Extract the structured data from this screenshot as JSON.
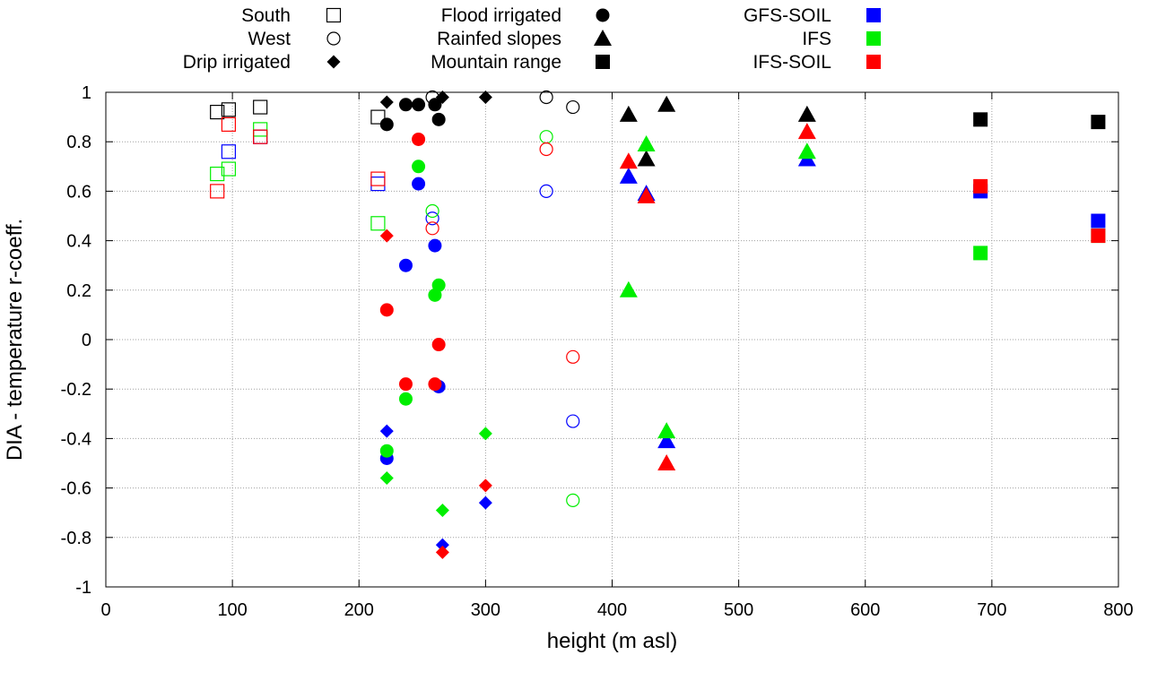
{
  "chart_data": {
    "type": "scatter",
    "title": "",
    "xlabel": "height (m asl)",
    "ylabel": "DIA - temperature r-coeff.",
    "xlim": [
      0,
      800
    ],
    "ylim": [
      -1,
      1
    ],
    "grid": true,
    "x_ticks": [
      "0",
      "100",
      "200",
      "300",
      "400",
      "500",
      "600",
      "700",
      "800"
    ],
    "y_ticks": [
      "1",
      "0.8",
      "0.6",
      "0.4",
      "0.2",
      "0",
      "-0.2",
      "-0.4",
      "-0.6",
      "-0.8",
      "-1"
    ],
    "legend_placement": "top, above plot",
    "legend": {
      "regions": [
        {
          "label": "South",
          "marker": "square-open"
        },
        {
          "label": "West",
          "marker": "circle-open"
        },
        {
          "label": "Drip irrigated",
          "marker": "diamond-filled"
        },
        {
          "label": "Flood irrigated",
          "marker": "circle-filled"
        },
        {
          "label": "Rainfed slopes",
          "marker": "triangle-filled"
        },
        {
          "label": "Mountain range",
          "marker": "square-filled"
        }
      ],
      "models": [
        {
          "label": "GFS-SOIL",
          "color": "#0000ff"
        },
        {
          "label": "IFS",
          "color": "#00ee00"
        },
        {
          "label": "IFS-SOIL",
          "color": "#ff0000"
        }
      ]
    },
    "model_colors": {
      "obs": "#000000",
      "gfs": "#0000ff",
      "ifs": "#00ee00",
      "ifssoil": "#ff0000"
    },
    "series": [
      {
        "marker": "square",
        "filled": false,
        "model": "obs",
        "points": [
          [
            88,
            0.92
          ],
          [
            97,
            0.93
          ],
          [
            122,
            0.94
          ],
          [
            215,
            0.9
          ]
        ]
      },
      {
        "marker": "square",
        "filled": false,
        "model": "gfs",
        "points": [
          [
            97,
            0.76
          ],
          [
            122,
            0.82
          ],
          [
            215,
            0.63
          ]
        ]
      },
      {
        "marker": "square",
        "filled": false,
        "model": "ifs",
        "points": [
          [
            88,
            0.67
          ],
          [
            97,
            0.69
          ],
          [
            122,
            0.85
          ],
          [
            215,
            0.47
          ]
        ]
      },
      {
        "marker": "square",
        "filled": false,
        "model": "ifssoil",
        "points": [
          [
            88,
            0.6
          ],
          [
            97,
            0.87
          ],
          [
            122,
            0.82
          ],
          [
            215,
            0.65
          ]
        ]
      },
      {
        "marker": "circle",
        "filled": false,
        "model": "obs",
        "points": [
          [
            258,
            0.98
          ],
          [
            348,
            0.98
          ],
          [
            369,
            0.94
          ]
        ]
      },
      {
        "marker": "circle",
        "filled": false,
        "model": "gfs",
        "points": [
          [
            258,
            0.49
          ],
          [
            348,
            0.6
          ],
          [
            369,
            -0.33
          ]
        ]
      },
      {
        "marker": "circle",
        "filled": false,
        "model": "ifs",
        "points": [
          [
            258,
            0.52
          ],
          [
            348,
            0.82
          ],
          [
            369,
            -0.65
          ]
        ]
      },
      {
        "marker": "circle",
        "filled": false,
        "model": "ifssoil",
        "points": [
          [
            258,
            0.45
          ],
          [
            348,
            0.77
          ],
          [
            369,
            -0.07
          ]
        ]
      },
      {
        "marker": "diamond",
        "filled": true,
        "model": "obs",
        "points": [
          [
            222,
            0.96
          ],
          [
            266,
            0.98
          ],
          [
            300,
            0.98
          ]
        ]
      },
      {
        "marker": "diamond",
        "filled": true,
        "model": "gfs",
        "points": [
          [
            222,
            -0.37
          ],
          [
            266,
            -0.83
          ],
          [
            300,
            -0.66
          ]
        ]
      },
      {
        "marker": "diamond",
        "filled": true,
        "model": "ifs",
        "points": [
          [
            222,
            -0.56
          ],
          [
            266,
            -0.69
          ],
          [
            300,
            -0.38
          ]
        ]
      },
      {
        "marker": "diamond",
        "filled": true,
        "model": "ifssoil",
        "points": [
          [
            222,
            0.42
          ],
          [
            266,
            -0.86
          ],
          [
            300,
            -0.59
          ]
        ]
      },
      {
        "marker": "circle",
        "filled": true,
        "model": "obs",
        "points": [
          [
            222,
            0.87
          ],
          [
            237,
            0.95
          ],
          [
            247,
            0.95
          ],
          [
            260,
            0.95
          ],
          [
            263,
            0.89
          ]
        ]
      },
      {
        "marker": "circle",
        "filled": true,
        "model": "gfs",
        "points": [
          [
            222,
            -0.48
          ],
          [
            237,
            0.3
          ],
          [
            247,
            0.63
          ],
          [
            260,
            0.38
          ],
          [
            263,
            -0.19
          ]
        ]
      },
      {
        "marker": "circle",
        "filled": true,
        "model": "ifs",
        "points": [
          [
            222,
            -0.45
          ],
          [
            237,
            -0.24
          ],
          [
            247,
            0.7
          ],
          [
            260,
            0.18
          ],
          [
            263,
            0.22
          ]
        ]
      },
      {
        "marker": "circle",
        "filled": true,
        "model": "ifssoil",
        "points": [
          [
            222,
            0.12
          ],
          [
            237,
            -0.18
          ],
          [
            247,
            0.81
          ],
          [
            260,
            -0.18
          ],
          [
            263,
            -0.02
          ]
        ]
      },
      {
        "marker": "triangle",
        "filled": true,
        "model": "obs",
        "points": [
          [
            413,
            0.91
          ],
          [
            427,
            0.73
          ],
          [
            443,
            0.95
          ],
          [
            554,
            0.91
          ]
        ]
      },
      {
        "marker": "triangle",
        "filled": true,
        "model": "gfs",
        "points": [
          [
            413,
            0.66
          ],
          [
            427,
            0.59
          ],
          [
            443,
            -0.41
          ],
          [
            554,
            0.73
          ]
        ]
      },
      {
        "marker": "triangle",
        "filled": true,
        "model": "ifs",
        "points": [
          [
            413,
            0.2
          ],
          [
            427,
            0.79
          ],
          [
            443,
            -0.37
          ],
          [
            554,
            0.76
          ]
        ]
      },
      {
        "marker": "triangle",
        "filled": true,
        "model": "ifssoil",
        "points": [
          [
            413,
            0.72
          ],
          [
            427,
            0.58
          ],
          [
            443,
            -0.5
          ],
          [
            554,
            0.84
          ]
        ]
      },
      {
        "marker": "square",
        "filled": true,
        "model": "obs",
        "points": [
          [
            691,
            0.89
          ],
          [
            784,
            0.88
          ]
        ]
      },
      {
        "marker": "square",
        "filled": true,
        "model": "gfs",
        "points": [
          [
            691,
            0.6
          ],
          [
            784,
            0.48
          ]
        ]
      },
      {
        "marker": "square",
        "filled": true,
        "model": "ifs",
        "points": [
          [
            691,
            0.35
          ],
          [
            784,
            0.42
          ]
        ]
      },
      {
        "marker": "square",
        "filled": true,
        "model": "ifssoil",
        "points": [
          [
            691,
            0.62
          ],
          [
            784,
            0.42
          ]
        ]
      }
    ]
  }
}
